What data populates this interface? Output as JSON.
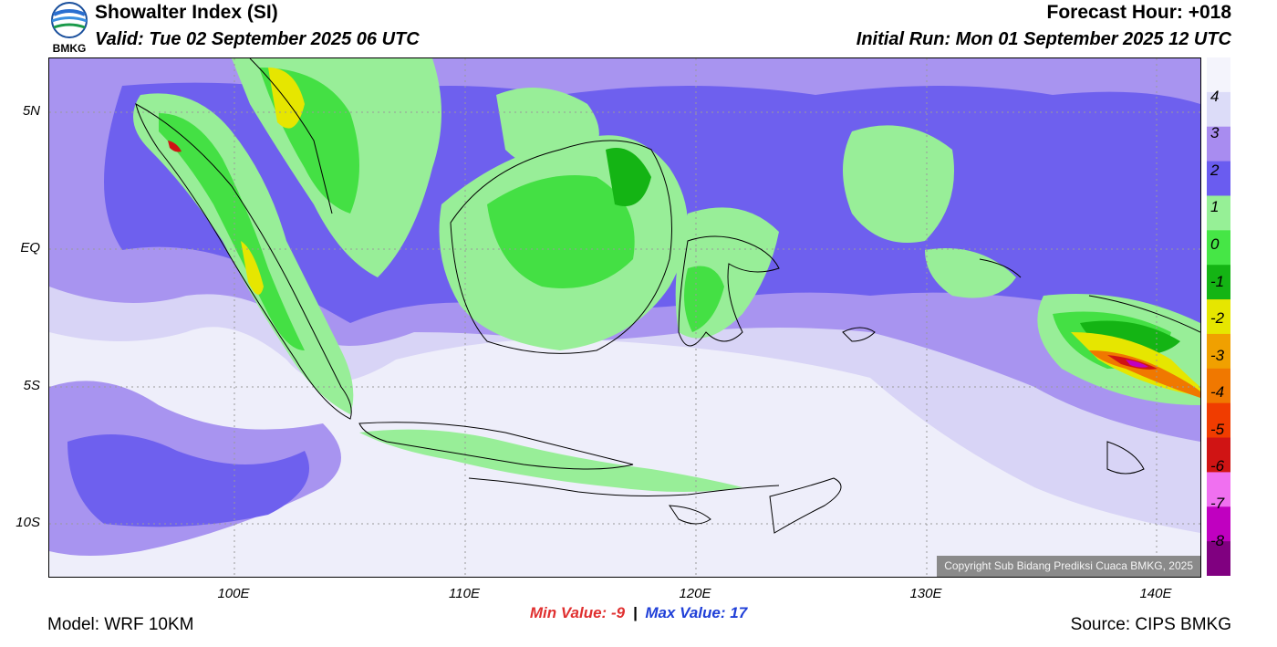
{
  "header": {
    "logo_text": "BMKG",
    "title": "Showalter Index (SI)",
    "valid": "Valid: Tue 02 September 2025 06 UTC",
    "forecast_hour": "Forecast Hour: +018",
    "initial_run": "Initial Run: Mon 01 September 2025 12 UTC"
  },
  "map": {
    "latitude_labels": [
      "5N",
      "EQ",
      "5S",
      "10S"
    ],
    "longitude_labels": [
      "100E",
      "110E",
      "120E",
      "130E",
      "140E"
    ],
    "copyright": "Copyright Sub Bidang Prediksi Cuaca BMKG, 2025"
  },
  "legend": {
    "labels": [
      "4",
      "3",
      "2",
      "1",
      "0",
      "-1",
      "-2",
      "-3",
      "-4",
      "-5",
      "-6",
      "-7",
      "-8"
    ],
    "colors": [
      "#f4f4fc",
      "#dcdcf8",
      "#a88cf0",
      "#6a5cf0",
      "#96f096",
      "#46e646",
      "#14b414",
      "#e6e600",
      "#f0a000",
      "#f07800",
      "#f03c00",
      "#d01414",
      "#f070f0",
      "#c000c0",
      "#800080"
    ]
  },
  "stats": {
    "min_label": "Min Value:",
    "min_value": "-9",
    "max_label": "Max Value:",
    "max_value": "17"
  },
  "footer": {
    "model": "Model: WRF 10KM",
    "source": "Source: CIPS BMKG"
  }
}
